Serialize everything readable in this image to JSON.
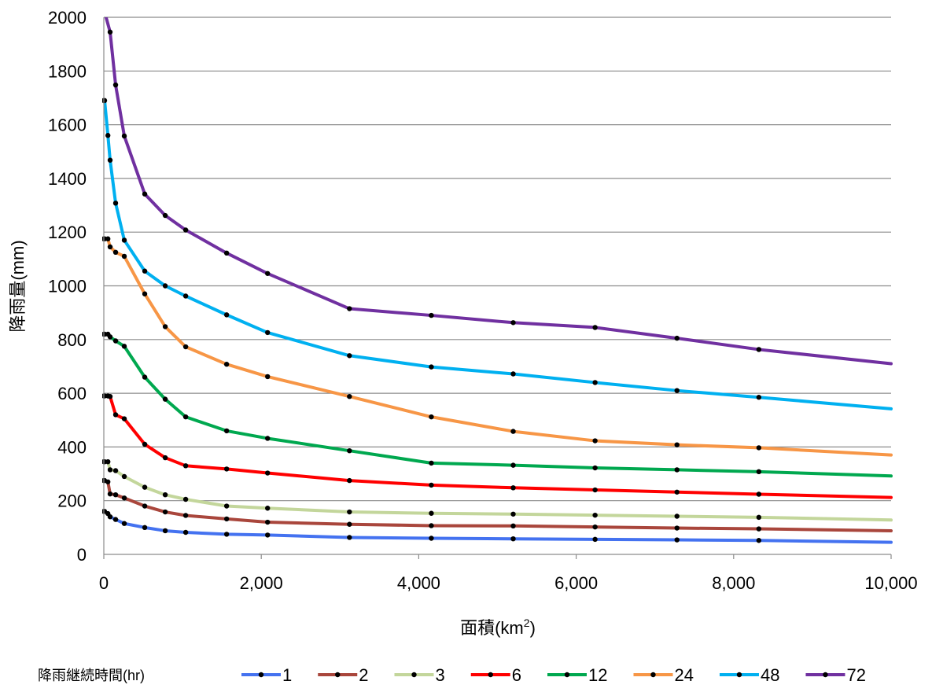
{
  "chart_data": {
    "type": "line",
    "title": "",
    "xlabel": "面積(km",
    "xlabel_sup": "2",
    "xlabel_close": ")",
    "ylabel": "降雨量(mm)",
    "xlim": [
      0,
      10000
    ],
    "ylim": [
      0,
      2000
    ],
    "x_ticks": [
      0,
      2000,
      4000,
      6000,
      8000,
      10000
    ],
    "x_tick_labels": [
      "0",
      "2,000",
      "4,000",
      "6,000",
      "8,000",
      "10,000"
    ],
    "y_ticks": [
      0,
      200,
      400,
      600,
      800,
      1000,
      1200,
      1400,
      1600,
      1800,
      2000
    ],
    "y_tick_labels": [
      "0",
      "200",
      "400",
      "600",
      "800",
      "1000",
      "1200",
      "1400",
      "1600",
      "1800",
      "2000"
    ],
    "grid": "horizontal",
    "legend_title": "降雨継続時間(hr)",
    "legend_position": "bottom",
    "series": [
      {
        "name": "1",
        "color": "#4472f0",
        "x": [
          0,
          10,
          52,
          80,
          150,
          260,
          520,
          780,
          1040,
          1560,
          2080,
          3120,
          4160,
          5200,
          6240,
          7280,
          8320,
          10000
        ],
        "y": [
          160,
          160,
          152,
          140,
          130,
          115,
          100,
          88,
          82,
          75,
          72,
          63,
          60,
          58,
          56,
          54,
          52,
          45
        ],
        "markers": [
          0,
          10,
          52,
          80,
          150,
          260,
          520,
          780,
          1040,
          1560,
          2080,
          3120,
          4160,
          5200,
          6240,
          7280,
          8320
        ]
      },
      {
        "name": "2",
        "color": "#a9463c",
        "x": [
          0,
          10,
          52,
          80,
          150,
          260,
          520,
          780,
          1040,
          1560,
          2080,
          3120,
          4160,
          5200,
          6240,
          7280,
          8320,
          10000
        ],
        "y": [
          275,
          275,
          270,
          225,
          222,
          210,
          180,
          158,
          145,
          132,
          120,
          112,
          107,
          106,
          102,
          98,
          95,
          88
        ],
        "markers": [
          0,
          10,
          52,
          80,
          150,
          260,
          520,
          780,
          1040,
          1560,
          2080,
          3120,
          4160,
          5200,
          6240,
          7280,
          8320
        ]
      },
      {
        "name": "3",
        "color": "#c3d69b",
        "x": [
          0,
          10,
          52,
          80,
          150,
          260,
          520,
          780,
          1040,
          1560,
          2080,
          3120,
          4160,
          5200,
          6240,
          7280,
          8320,
          10000
        ],
        "y": [
          345,
          345,
          345,
          315,
          312,
          290,
          250,
          222,
          205,
          180,
          172,
          158,
          153,
          150,
          146,
          142,
          138,
          128
        ],
        "markers": [
          0,
          10,
          52,
          80,
          150,
          260,
          520,
          780,
          1040,
          1560,
          2080,
          3120,
          4160,
          5200,
          6240,
          7280,
          8320
        ]
      },
      {
        "name": "6",
        "color": "#ff0000",
        "x": [
          0,
          10,
          52,
          80,
          150,
          260,
          520,
          780,
          1040,
          1560,
          2080,
          3120,
          4160,
          5200,
          6240,
          7280,
          8320,
          10000
        ],
        "y": [
          590,
          590,
          590,
          588,
          520,
          505,
          410,
          360,
          330,
          318,
          303,
          275,
          258,
          248,
          240,
          232,
          224,
          212
        ],
        "markers": [
          0,
          10,
          52,
          80,
          150,
          260,
          520,
          780,
          1040,
          1560,
          2080,
          3120,
          4160,
          5200,
          6240,
          7280,
          8320
        ]
      },
      {
        "name": "12",
        "color": "#00a84f",
        "x": [
          0,
          10,
          52,
          80,
          150,
          260,
          520,
          780,
          1040,
          1560,
          2080,
          3120,
          4160,
          5200,
          6240,
          7280,
          8320,
          10000
        ],
        "y": [
          820,
          820,
          820,
          810,
          795,
          775,
          660,
          578,
          512,
          460,
          432,
          386,
          340,
          332,
          322,
          315,
          308,
          292
        ],
        "markers": [
          0,
          10,
          52,
          80,
          150,
          260,
          520,
          780,
          1040,
          1560,
          2080,
          3120,
          4160,
          5200,
          6240,
          7280,
          8320
        ]
      },
      {
        "name": "24",
        "color": "#f79646",
        "x": [
          0,
          10,
          52,
          80,
          150,
          260,
          520,
          780,
          1040,
          1560,
          2080,
          3120,
          4160,
          5200,
          6240,
          7280,
          8320,
          10000
        ],
        "y": [
          1175,
          1175,
          1175,
          1145,
          1125,
          1110,
          970,
          848,
          773,
          708,
          662,
          588,
          512,
          458,
          423,
          408,
          397,
          370
        ],
        "markers": [
          0,
          10,
          52,
          80,
          150,
          260,
          520,
          780,
          1040,
          1560,
          2080,
          3120,
          4160,
          5200,
          6240,
          7280,
          8320
        ]
      },
      {
        "name": "48",
        "color": "#00b0f0",
        "x": [
          0,
          10,
          52,
          80,
          150,
          260,
          520,
          780,
          1040,
          1560,
          2080,
          3120,
          4160,
          5200,
          6240,
          7280,
          8320,
          10000
        ],
        "y": [
          1690,
          1690,
          1560,
          1468,
          1308,
          1170,
          1055,
          1000,
          962,
          892,
          826,
          740,
          698,
          672,
          640,
          610,
          585,
          542
        ],
        "markers": [
          0,
          10,
          52,
          80,
          150,
          260,
          520,
          780,
          1040,
          1560,
          2080,
          3120,
          4160,
          5200,
          6240,
          7280,
          8320
        ]
      },
      {
        "name": "72",
        "color": "#7030a0",
        "x": [
          10,
          80,
          150,
          260,
          520,
          780,
          1040,
          1560,
          2080,
          3120,
          4160,
          5200,
          6240,
          7280,
          8320,
          10000
        ],
        "y": [
          2020,
          1945,
          1748,
          1558,
          1342,
          1262,
          1208,
          1122,
          1046,
          915,
          890,
          863,
          845,
          805,
          763,
          710
        ],
        "markers": [
          80,
          150,
          260,
          520,
          780,
          1040,
          1560,
          2080,
          3120,
          4160,
          5200,
          6240,
          7280,
          8320
        ]
      }
    ]
  }
}
